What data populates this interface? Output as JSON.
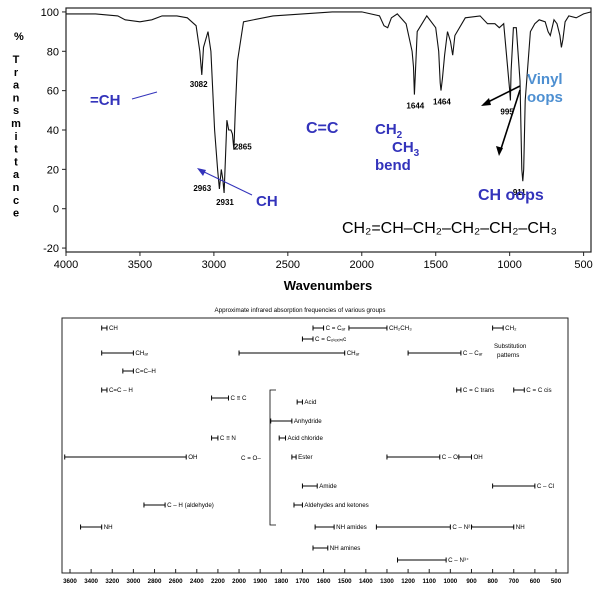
{
  "colors": {
    "trace": "#111111",
    "annotation": "#3333bb",
    "vinyl": "#4d8fd1",
    "frame": "#222222"
  },
  "chart_data": [
    {
      "type": "line",
      "title": "",
      "xlabel": "Wavenumbers",
      "ylabel": "% Transmittance",
      "xlim": [
        4000,
        450
      ],
      "ylim": [
        -22,
        102
      ],
      "x_reversed": true,
      "grid": false,
      "xticks": [
        4000,
        3500,
        3000,
        2500,
        2000,
        1500,
        1000,
        500
      ],
      "yticks": [
        100,
        80,
        60,
        40,
        20,
        0,
        -20
      ],
      "series": [
        {
          "x": [
            4000,
            3800,
            3650,
            3600,
            3500,
            3420,
            3350,
            3250,
            3180,
            3120,
            3095,
            3082,
            3070,
            3040,
            3020,
            2995,
            2975,
            2963,
            2950,
            2940,
            2931,
            2922,
            2912,
            2900,
            2885,
            2875,
            2865,
            2855,
            2840,
            2800,
            2600,
            2400,
            2200,
            2000,
            1880,
            1850,
            1825,
            1800,
            1760,
            1700,
            1660,
            1650,
            1644,
            1638,
            1625,
            1560,
            1500,
            1480,
            1470,
            1464,
            1455,
            1440,
            1420,
            1400,
            1385,
            1370,
            1300,
            1200,
            1150,
            1100,
            1070,
            1040,
            1000,
            995,
            990,
            975,
            955,
            930,
            918,
            911,
            905,
            895,
            860,
            830,
            800,
            760,
            740,
            725,
            700,
            680,
            660,
            650,
            640,
            625,
            600,
            550,
            500,
            450
          ],
          "y": [
            99,
            99,
            98,
            96,
            95,
            96,
            98,
            98,
            97,
            93,
            80,
            68,
            82,
            90,
            80,
            40,
            20,
            10,
            20,
            15,
            8,
            25,
            45,
            40,
            40,
            38,
            30,
            50,
            75,
            95,
            98,
            99,
            100,
            100,
            98,
            93,
            92,
            97,
            99,
            94,
            80,
            72,
            58,
            68,
            90,
            98,
            92,
            80,
            64,
            60,
            66,
            78,
            90,
            85,
            78,
            88,
            97,
            98,
            94,
            94,
            92,
            94,
            60,
            55,
            70,
            92,
            92,
            65,
            20,
            14,
            20,
            55,
            90,
            94,
            96,
            95,
            90,
            88,
            96,
            94,
            88,
            82,
            86,
            95,
            98,
            97,
            99,
            100
          ]
        }
      ],
      "point_labels": [
        {
          "text": "3082",
          "x": 3082,
          "y": 68
        },
        {
          "text": "2963",
          "x": 2963,
          "y": 10
        },
        {
          "text": "2931",
          "x": 2931,
          "y": 8
        },
        {
          "text": "2865",
          "x": 2865,
          "y": 30
        },
        {
          "text": "1644",
          "x": 1644,
          "y": 58
        },
        {
          "text": "1464",
          "x": 1464,
          "y": 60
        },
        {
          "text": "995",
          "x": 995,
          "y": 55
        },
        {
          "text": "911",
          "x": 911,
          "y": 14
        }
      ],
      "annotations": [
        {
          "text": "=CH"
        },
        {
          "text": "CH"
        },
        {
          "text": "C=C"
        },
        {
          "text": "CH",
          "sub": "2"
        },
        {
          "text": "CH",
          "sub": "3"
        },
        {
          "text": "bend"
        },
        {
          "text": "Vinyl"
        },
        {
          "text": "oops"
        },
        {
          "text": "CH oops"
        }
      ],
      "formula": "CH₂=CH–CH₂–CH₂–CH₂–CH₃"
    },
    {
      "type": "table",
      "title": "Approximate infrared absorption frequencies of various groups",
      "xlim": [
        3600,
        450
      ],
      "xticks": [
        3600,
        3400,
        3200,
        3000,
        2800,
        2600,
        2400,
        2200,
        2000,
        1900,
        1800,
        1700,
        1600,
        1500,
        1400,
        1300,
        1200,
        1100,
        1000,
        900,
        800,
        700,
        600,
        500
      ],
      "ranges": [
        {
          "label": "CH",
          "from": 3300,
          "to": 3250,
          "row": 0
        },
        {
          "label": "C = Cₐᵣ",
          "from": 1650,
          "to": 1600,
          "row": 0
        },
        {
          "label": "CH₂CH₃",
          "from": 1480,
          "to": 1300,
          "row": 0
        },
        {
          "label": "CH₂",
          "from": 800,
          "to": 750,
          "row": 0
        },
        {
          "label": "C = Cₒₗₑₓᵢₙᵢc",
          "from": 1700,
          "to": 1650,
          "row": 1
        },
        {
          "label": "CHₐᵣ",
          "from": 3300,
          "to": 3000,
          "row": 2
        },
        {
          "label": "CHₐᵣ",
          "from": 2000,
          "to": 1500,
          "row": 2
        },
        {
          "label": "C – Cₐᵣ",
          "from": 1200,
          "to": 950,
          "row": 2
        },
        {
          "label": "C=C–H",
          "from": 3100,
          "to": 3000,
          "row": 3
        },
        {
          "label": "C=C – H",
          "from": 3300,
          "to": 3250,
          "row": 4
        },
        {
          "label": "C = C trans",
          "from": 970,
          "to": 950,
          "row": 4
        },
        {
          "label": "C = C cis",
          "from": 700,
          "to": 650,
          "row": 4
        },
        {
          "label": "C ≡ C",
          "from": 2260,
          "to": 2100,
          "row": 5
        },
        {
          "label": "Acid",
          "from": 1725,
          "to": 1700,
          "row": 6
        },
        {
          "label": "Anhydride",
          "from": 1850,
          "to": 1750,
          "row": 7
        },
        {
          "label": "C ≡ N",
          "from": 2260,
          "to": 2200,
          "row": 8
        },
        {
          "label": "Acid chloride",
          "from": 1810,
          "to": 1780,
          "row": 8
        },
        {
          "label": "OH",
          "from": 3650,
          "to": 2500,
          "row": 9
        },
        {
          "label": "Ester",
          "from": 1750,
          "to": 1730,
          "row": 9
        },
        {
          "label": "C – O",
          "from": 1300,
          "to": 1050,
          "row": 9
        },
        {
          "label": "OH",
          "from": 960,
          "to": 900,
          "row": 9
        },
        {
          "label": "Amide",
          "from": 1700,
          "to": 1630,
          "row": 10
        },
        {
          "label": "C – Cl",
          "from": 800,
          "to": 600,
          "row": 10
        },
        {
          "label": "C – H (aldehyde)",
          "from": 2900,
          "to": 2700,
          "row": 11
        },
        {
          "label": "Aldehydes and ketones",
          "from": 1740,
          "to": 1700,
          "row": 11
        },
        {
          "label": "NH",
          "from": 3500,
          "to": 3300,
          "row": 12
        },
        {
          "label": "NH amides",
          "from": 1640,
          "to": 1550,
          "row": 12
        },
        {
          "label": "C – N²⁺",
          "from": 1350,
          "to": 1000,
          "row": 12
        },
        {
          "label": "NH",
          "from": 900,
          "to": 700,
          "row": 12
        },
        {
          "label": "NH amines",
          "from": 1650,
          "to": 1580,
          "row": 13
        },
        {
          "label": "C – N³⁺",
          "from": 1250,
          "to": 1020,
          "row": 14
        }
      ],
      "side_labels": {
        "substitution": "Substitution",
        "patterns": "patterns",
        "c_eq_o": "C = O–"
      }
    }
  ]
}
